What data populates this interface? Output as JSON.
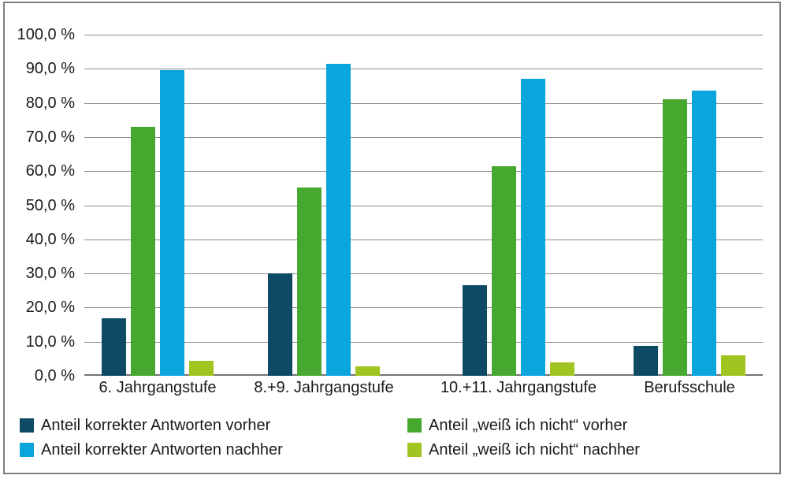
{
  "chart_data": {
    "type": "bar",
    "categories": [
      "6. Jahrgangstufe",
      "8.+9. Jahrgangstufe",
      "10.+11. Jahrgangstufe",
      "Berufsschule"
    ],
    "series": [
      {
        "name": "Anteil korrekter Antworten vorher",
        "color": "#0E4A64",
        "values": [
          16.8,
          30.0,
          26.5,
          8.7
        ]
      },
      {
        "name": "Anteil „weiß ich nicht“ vorher",
        "color": "#46A82E",
        "values": [
          73.0,
          55.2,
          61.5,
          81.0
        ]
      },
      {
        "name": "Anteil korrekter Antworten nachher",
        "color": "#0AA5DC",
        "values": [
          89.5,
          91.5,
          87.0,
          83.5
        ]
      },
      {
        "name": "Anteil „weiß ich nicht“ nachher",
        "color": "#A0C521",
        "values": [
          4.4,
          2.7,
          3.9,
          5.9
        ]
      }
    ],
    "y_ticks": [
      "100,0 %",
      "90,0 %",
      "80,0 %",
      "70,0 %",
      "60,0 %",
      "50,0 %",
      "40,0 %",
      "30,0 %",
      "20,0 %",
      "10,0 %",
      "0,0 %"
    ],
    "ylim": [
      0,
      100
    ],
    "grid": true,
    "legend_position": "bottom",
    "legend_columns": [
      [
        0,
        2
      ],
      [
        1,
        3
      ]
    ]
  },
  "colors": {
    "gridline": "#8C8C8C",
    "axis_line": "#737373",
    "figure_border": "#7F7F7F",
    "text": "#1A1A1A",
    "background": "#FFFFFF"
  }
}
